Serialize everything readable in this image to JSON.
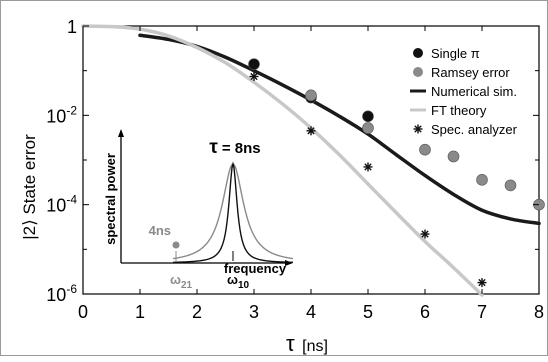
{
  "chart_data": {
    "type": "scatter",
    "xlabel_sym": "τ",
    "xlabel_unit": "[ns]",
    "ylabel": "|2⟩ State error",
    "xlim": [
      0,
      8
    ],
    "ylim": [
      1e-06,
      1
    ],
    "yscale": "log",
    "x_ticks": [
      0,
      1,
      2,
      3,
      4,
      5,
      6,
      7,
      8
    ],
    "y_ticks": [
      {
        "value": 1,
        "base": "1",
        "exp": ""
      },
      {
        "value": 0.01,
        "base": "10",
        "exp": "-2"
      },
      {
        "value": 0.0001,
        "base": "10",
        "exp": "-4"
      },
      {
        "value": 1e-06,
        "base": "10",
        "exp": "-6"
      }
    ],
    "legend_position": "top-right",
    "series": [
      {
        "name": "Single π",
        "kind": "markers",
        "marker": "dot",
        "color": "#111111",
        "x": [
          3,
          4,
          5
        ],
        "y": [
          0.14,
          0.025,
          0.0095
        ]
      },
      {
        "name": "Ramsey error",
        "kind": "markers",
        "marker": "dot",
        "color": "#8a8a8a",
        "x": [
          4,
          5,
          6,
          6.5,
          7,
          7.5,
          8
        ],
        "y": [
          0.028,
          0.0052,
          0.0017,
          0.0012,
          0.00036,
          0.00027,
          0.0001
        ]
      },
      {
        "name": "Numerical sim.",
        "kind": "line",
        "color": "#1a1a1a",
        "x": [
          1,
          1.5,
          2,
          2.5,
          3,
          3.5,
          4,
          4.5,
          5,
          5.5,
          6,
          6.5,
          7,
          7.5,
          8
        ],
        "y": [
          0.62,
          0.5,
          0.35,
          0.2,
          0.1,
          0.048,
          0.022,
          0.0095,
          0.0038,
          0.0013,
          0.00045,
          0.00017,
          7.5e-05,
          4.8e-05,
          3.8e-05
        ]
      },
      {
        "name": "FT theory",
        "kind": "line",
        "color": "#c8c8c8",
        "x": [
          0,
          0.5,
          1,
          1.5,
          2,
          2.5,
          3,
          3.5,
          4,
          4.5,
          5,
          5.5,
          6,
          6.5,
          7
        ],
        "y": [
          1,
          0.97,
          0.85,
          0.6,
          0.33,
          0.15,
          0.055,
          0.018,
          0.0052,
          0.0013,
          0.00029,
          6.5e-05,
          1.5e-05,
          3.9e-06,
          9.5e-07
        ]
      },
      {
        "name": "Spec. analyzer",
        "kind": "markers",
        "marker": "asterisk",
        "color": "#111111",
        "x": [
          3,
          4,
          5,
          6,
          7
        ],
        "y": [
          0.074,
          0.0045,
          0.0007,
          2.2e-05,
          1.8e-06
        ]
      }
    ],
    "inset": {
      "title_sym": "τ",
      "title_value": "= 8ns",
      "curve_label": "4ns",
      "ylabel": "spectral power",
      "xlabel": "frequency",
      "omega21_base": "ω",
      "omega21_sub": "21",
      "omega10_base": "ω",
      "omega10_sub": "10",
      "narrow_color": "#111111",
      "broad_color": "#8a8a8a"
    }
  }
}
